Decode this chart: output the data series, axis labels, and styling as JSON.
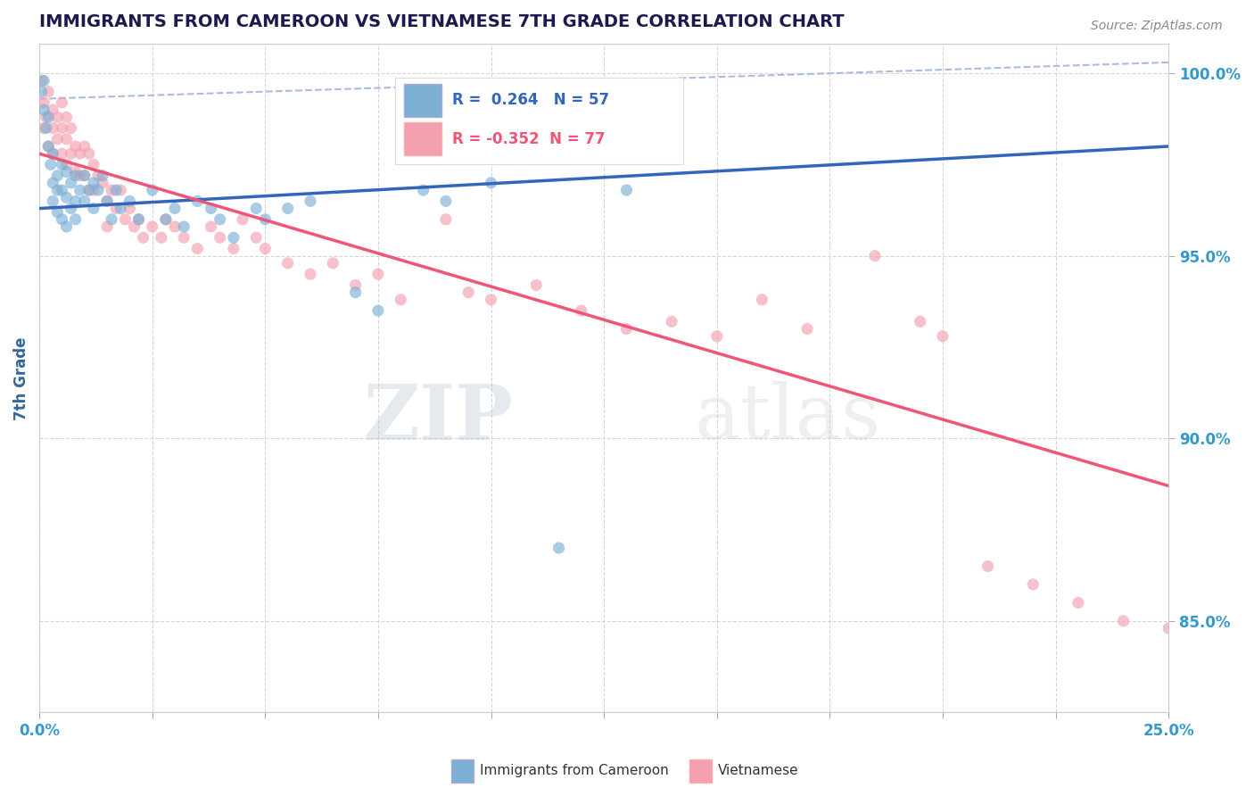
{
  "title": "IMMIGRANTS FROM CAMEROON VS VIETNAMESE 7TH GRADE CORRELATION CHART",
  "source": "Source: ZipAtlas.com",
  "ylabel": "7th Grade",
  "xlim": [
    0.0,
    0.25
  ],
  "ylim": [
    0.825,
    1.008
  ],
  "xtick_positions": [
    0.0,
    0.025,
    0.05,
    0.075,
    0.1,
    0.125,
    0.15,
    0.175,
    0.2,
    0.225,
    0.25
  ],
  "xtick_labels": [
    "0.0%",
    "",
    "",
    "",
    "",
    "",
    "",
    "",
    "",
    "",
    "25.0%"
  ],
  "yticks": [
    0.85,
    0.9,
    0.95,
    1.0
  ],
  "ytick_labels": [
    "85.0%",
    "90.0%",
    "95.0%",
    "100.0%"
  ],
  "cameroon_R": 0.264,
  "cameroon_N": 57,
  "vietnamese_R": -0.352,
  "vietnamese_N": 77,
  "blue_color": "#7BAFD4",
  "pink_color": "#F4A0B0",
  "blue_line_color": "#3366BB",
  "pink_line_color": "#EE5577",
  "dashed_line_color": "#AABCDD",
  "background_color": "#FFFFFF",
  "grid_color": "#CCCCCC",
  "title_color": "#1a1a4e",
  "axis_label_color": "#336699",
  "tick_color": "#3399CC",
  "scatter_alpha": 0.65,
  "scatter_size": 90,
  "blue_trend": [
    0.0,
    0.25,
    0.963,
    0.98
  ],
  "pink_trend": [
    0.0,
    0.25,
    0.978,
    0.887
  ],
  "dashed_trend": [
    0.0,
    0.25,
    0.993,
    1.003
  ],
  "cameroon_scatter_x": [
    0.0005,
    0.001,
    0.001,
    0.0015,
    0.002,
    0.002,
    0.0025,
    0.003,
    0.003,
    0.003,
    0.004,
    0.004,
    0.004,
    0.005,
    0.005,
    0.005,
    0.006,
    0.006,
    0.006,
    0.007,
    0.007,
    0.008,
    0.008,
    0.008,
    0.009,
    0.01,
    0.01,
    0.011,
    0.012,
    0.012,
    0.013,
    0.014,
    0.015,
    0.016,
    0.017,
    0.018,
    0.02,
    0.022,
    0.025,
    0.028,
    0.03,
    0.032,
    0.035,
    0.038,
    0.04,
    0.043,
    0.048,
    0.05,
    0.055,
    0.06,
    0.07,
    0.075,
    0.085,
    0.09,
    0.1,
    0.115,
    0.13
  ],
  "cameroon_scatter_y": [
    0.995,
    0.998,
    0.99,
    0.985,
    0.988,
    0.98,
    0.975,
    0.978,
    0.97,
    0.965,
    0.972,
    0.968,
    0.962,
    0.975,
    0.968,
    0.96,
    0.973,
    0.966,
    0.958,
    0.97,
    0.963,
    0.972,
    0.965,
    0.96,
    0.968,
    0.972,
    0.965,
    0.968,
    0.97,
    0.963,
    0.968,
    0.972,
    0.965,
    0.96,
    0.968,
    0.963,
    0.965,
    0.96,
    0.968,
    0.96,
    0.963,
    0.958,
    0.965,
    0.963,
    0.96,
    0.955,
    0.963,
    0.96,
    0.963,
    0.965,
    0.94,
    0.935,
    0.968,
    0.965,
    0.97,
    0.87,
    0.968
  ],
  "vietnamese_scatter_x": [
    0.0005,
    0.001,
    0.001,
    0.0015,
    0.002,
    0.002,
    0.003,
    0.003,
    0.003,
    0.004,
    0.004,
    0.005,
    0.005,
    0.005,
    0.006,
    0.006,
    0.006,
    0.007,
    0.007,
    0.008,
    0.008,
    0.009,
    0.009,
    0.01,
    0.01,
    0.011,
    0.011,
    0.012,
    0.012,
    0.013,
    0.014,
    0.015,
    0.015,
    0.016,
    0.017,
    0.018,
    0.019,
    0.02,
    0.021,
    0.022,
    0.023,
    0.025,
    0.027,
    0.028,
    0.03,
    0.032,
    0.035,
    0.038,
    0.04,
    0.043,
    0.045,
    0.048,
    0.05,
    0.055,
    0.06,
    0.065,
    0.07,
    0.075,
    0.08,
    0.09,
    0.095,
    0.1,
    0.11,
    0.12,
    0.13,
    0.14,
    0.15,
    0.16,
    0.17,
    0.185,
    0.195,
    0.2,
    0.21,
    0.22,
    0.23,
    0.24,
    0.25
  ],
  "vietnamese_scatter_y": [
    0.998,
    0.992,
    0.985,
    0.988,
    0.995,
    0.98,
    0.99,
    0.985,
    0.978,
    0.988,
    0.982,
    0.992,
    0.985,
    0.978,
    0.988,
    0.982,
    0.975,
    0.985,
    0.978,
    0.98,
    0.973,
    0.978,
    0.972,
    0.98,
    0.972,
    0.978,
    0.968,
    0.975,
    0.968,
    0.972,
    0.97,
    0.965,
    0.958,
    0.968,
    0.963,
    0.968,
    0.96,
    0.963,
    0.958,
    0.96,
    0.955,
    0.958,
    0.955,
    0.96,
    0.958,
    0.955,
    0.952,
    0.958,
    0.955,
    0.952,
    0.96,
    0.955,
    0.952,
    0.948,
    0.945,
    0.948,
    0.942,
    0.945,
    0.938,
    0.96,
    0.94,
    0.938,
    0.942,
    0.935,
    0.93,
    0.932,
    0.928,
    0.938,
    0.93,
    0.95,
    0.932,
    0.928,
    0.865,
    0.86,
    0.855,
    0.85,
    0.848
  ]
}
